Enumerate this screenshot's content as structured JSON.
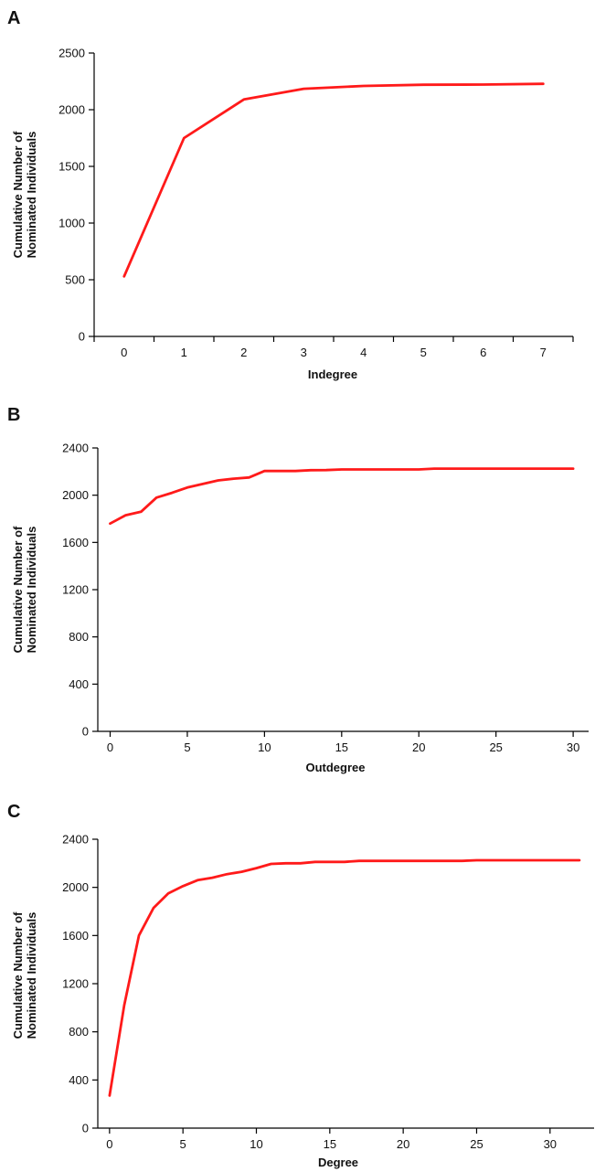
{
  "colors": {
    "series": "#ff1a1a",
    "axis": "#000000",
    "text": "#111111"
  },
  "chart_data": [
    {
      "panel_label": "A",
      "type": "line",
      "title": "",
      "xlabel": "Indegree",
      "ylabel_lines": [
        "Cumulative Number of",
        "Nominated Individuals"
      ],
      "xlim": [
        -0.5,
        7.5
      ],
      "ylim": [
        0,
        2500
      ],
      "x_ticks": [
        0,
        1,
        2,
        3,
        4,
        5,
        6,
        7
      ],
      "x_tick_labels": [
        "0",
        "1",
        "2",
        "3",
        "4",
        "5",
        "6",
        "7"
      ],
      "x_tick_marks": [
        -0.5,
        0.5,
        1.5,
        2.5,
        3.5,
        4.5,
        5.5,
        6.5,
        7.5
      ],
      "y_ticks": [
        0,
        500,
        1000,
        1500,
        2000,
        2500
      ],
      "y_tick_labels": [
        "0",
        "500",
        "1000",
        "1500",
        "2000",
        "2500"
      ],
      "grid": false,
      "legend": "none",
      "series": [
        {
          "x": [
            0,
            1,
            2,
            3,
            4,
            5,
            6,
            7
          ],
          "values": [
            530,
            1750,
            2090,
            2185,
            2210,
            2220,
            2222,
            2228
          ]
        }
      ]
    },
    {
      "panel_label": "B",
      "type": "line",
      "title": "",
      "xlabel": "Outdegree",
      "ylabel_lines": [
        "Cumulative Number of",
        "Nominated Individuals"
      ],
      "xlim": [
        -0.8,
        31
      ],
      "ylim": [
        0,
        2400
      ],
      "x_ticks": [
        0,
        5,
        10,
        15,
        20,
        25,
        30
      ],
      "x_tick_labels": [
        "0",
        "5",
        "10",
        "15",
        "20",
        "25",
        "30"
      ],
      "x_tick_marks": [
        0,
        5,
        10,
        15,
        20,
        25,
        30
      ],
      "y_ticks": [
        0,
        400,
        800,
        1200,
        1600,
        2000,
        2400
      ],
      "y_tick_labels": [
        "0",
        "400",
        "800",
        "1200",
        "1600",
        "2000",
        "2400"
      ],
      "grid": false,
      "legend": "none",
      "series": [
        {
          "x": [
            0,
            1,
            2,
            3,
            4,
            5,
            6,
            7,
            8,
            9,
            10,
            11,
            12,
            13,
            14,
            15,
            16,
            17,
            18,
            19,
            20,
            21,
            22,
            23,
            24,
            25,
            26,
            27,
            28,
            29,
            30
          ],
          "values": [
            1760,
            1830,
            1860,
            1980,
            2020,
            2065,
            2095,
            2125,
            2140,
            2150,
            2205,
            2205,
            2205,
            2212,
            2213,
            2218,
            2218,
            2218,
            2218,
            2218,
            2218,
            2225,
            2225,
            2225,
            2225,
            2225,
            2225,
            2225,
            2225,
            2225,
            2225
          ]
        }
      ]
    },
    {
      "panel_label": "C",
      "type": "line",
      "title": "",
      "xlabel": "Degree",
      "ylabel_lines": [
        "Cumulative Number of",
        "Nominated Individuals"
      ],
      "xlim": [
        -0.8,
        33
      ],
      "ylim": [
        0,
        2400
      ],
      "x_ticks": [
        0,
        5,
        10,
        15,
        20,
        25,
        30
      ],
      "x_tick_labels": [
        "0",
        "5",
        "10",
        "15",
        "20",
        "25",
        "30"
      ],
      "x_tick_marks": [
        0,
        5,
        10,
        15,
        20,
        25,
        30
      ],
      "y_ticks": [
        0,
        400,
        800,
        1200,
        1600,
        2000,
        2400
      ],
      "y_tick_labels": [
        "0",
        "400",
        "800",
        "1200",
        "1600",
        "2000",
        "2400"
      ],
      "grid": false,
      "legend": "none",
      "series": [
        {
          "x": [
            0,
            1,
            2,
            3,
            4,
            5,
            6,
            7,
            8,
            9,
            10,
            11,
            12,
            13,
            14,
            15,
            16,
            17,
            18,
            19,
            20,
            21,
            22,
            23,
            24,
            25,
            26,
            27,
            28,
            29,
            30,
            31,
            32
          ],
          "values": [
            270,
            1020,
            1600,
            1830,
            1950,
            2010,
            2060,
            2080,
            2110,
            2130,
            2160,
            2195,
            2200,
            2200,
            2212,
            2212,
            2212,
            2220,
            2220,
            2220,
            2220,
            2220,
            2220,
            2220,
            2220,
            2225,
            2225,
            2225,
            2225,
            2225,
            2225,
            2225,
            2225
          ]
        }
      ]
    }
  ]
}
